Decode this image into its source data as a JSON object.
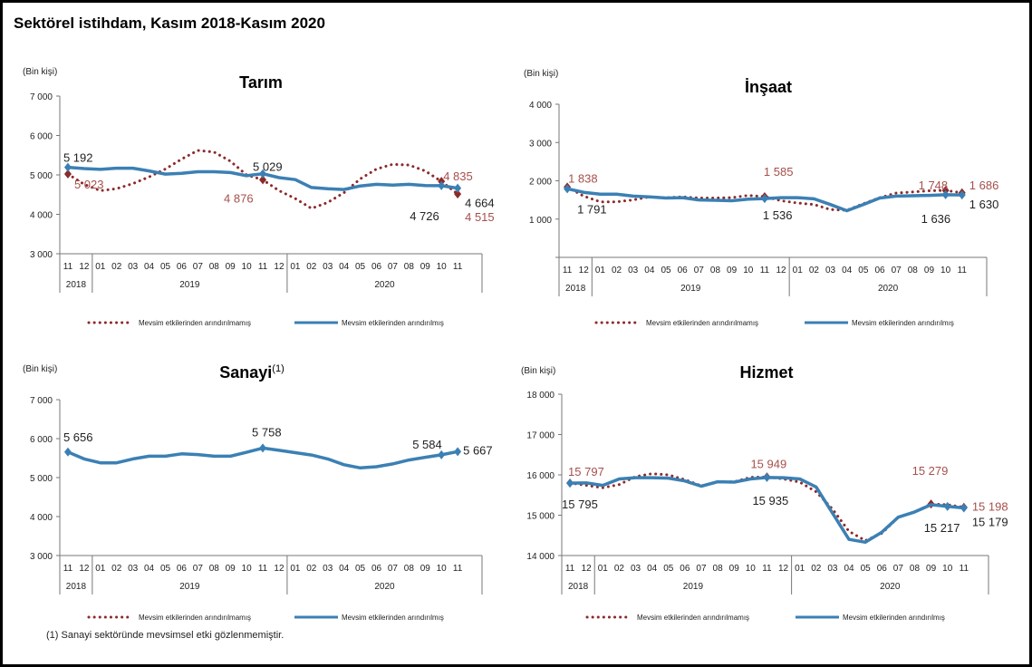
{
  "title": "Sektörel istihdam, Kasım 2018-Kasım 2020",
  "footnote": "(1) Sanayi sektöründe mevsimsel etki gözlenmemiştir.",
  "colors": {
    "adjusted": "#3b80b4",
    "unadjusted": "#8c2a2a",
    "unadjusted_label": "#a5504c"
  },
  "chart_data": [
    {
      "type": "line",
      "title": "Tarım",
      "title_sup": "",
      "ylabel": "(Bin kişi)",
      "ylim": [
        3000,
        7000
      ],
      "yticks": [
        "3 000",
        "4 000",
        "5 000",
        "6 000",
        "7 000"
      ],
      "ytick_values": [
        3000,
        4000,
        5000,
        6000,
        7000
      ],
      "months": [
        "11",
        "12",
        "01",
        "02",
        "03",
        "04",
        "05",
        "06",
        "07",
        "08",
        "09",
        "10",
        "11",
        "12",
        "01",
        "02",
        "03",
        "04",
        "05",
        "06",
        "07",
        "08",
        "09",
        "10",
        "11"
      ],
      "years": [
        "2018",
        "2019",
        "2020"
      ],
      "series": [
        {
          "name": "Mevsim etkilerinden arındırılmamış",
          "style": "dotted",
          "values": [
            5023,
            4760,
            4600,
            4650,
            4780,
            4950,
            5150,
            5400,
            5620,
            5580,
            5350,
            5000,
            4876,
            4600,
            4400,
            4150,
            4300,
            4550,
            4900,
            5150,
            5270,
            5250,
            5100,
            4835,
            4515
          ],
          "labels": [
            {
              "i": 0,
              "text": "5 023"
            },
            {
              "i": 12,
              "text": "4 876"
            },
            {
              "i": 23,
              "text": "4 835"
            },
            {
              "i": 24,
              "text": "4 515"
            }
          ]
        },
        {
          "name": "Mevsim etkilerinden arındırılmış",
          "style": "solid",
          "values": [
            5192,
            5160,
            5140,
            5170,
            5170,
            5100,
            5020,
            5040,
            5080,
            5080,
            5060,
            4980,
            5029,
            4930,
            4880,
            4680,
            4650,
            4630,
            4720,
            4760,
            4740,
            4760,
            4730,
            4726,
            4664
          ],
          "labels": [
            {
              "i": 0,
              "text": "5 192"
            },
            {
              "i": 12,
              "text": "5 029"
            },
            {
              "i": 23,
              "text": "4 726"
            },
            {
              "i": 24,
              "text": "4 664"
            }
          ]
        }
      ],
      "legend": "bottom"
    },
    {
      "type": "line",
      "title": "İnşaat",
      "title_sup": "",
      "ylabel": "(Bin kişi)",
      "ylim": [
        0,
        4000
      ],
      "yticks": [
        "",
        "1 000",
        "2 000",
        "3 000",
        "4 000"
      ],
      "ytick_values": [
        0,
        1000,
        2000,
        3000,
        4000
      ],
      "months": [
        "11",
        "12",
        "01",
        "02",
        "03",
        "04",
        "05",
        "06",
        "07",
        "08",
        "09",
        "10",
        "11",
        "12",
        "01",
        "02",
        "03",
        "04",
        "05",
        "06",
        "07",
        "08",
        "09",
        "10",
        "11"
      ],
      "years": [
        "2018",
        "2019",
        "2020"
      ],
      "series": [
        {
          "name": "Mevsim etkilerinden arındırılmamış",
          "style": "dotted",
          "values": [
            1838,
            1600,
            1450,
            1450,
            1500,
            1580,
            1560,
            1580,
            1550,
            1550,
            1560,
            1620,
            1585,
            1480,
            1420,
            1380,
            1250,
            1230,
            1400,
            1560,
            1680,
            1710,
            1740,
            1748,
            1686
          ],
          "labels": [
            {
              "i": 0,
              "text": "1 838"
            },
            {
              "i": 12,
              "text": "1 585"
            },
            {
              "i": 23,
              "text": "1 748"
            },
            {
              "i": 24,
              "text": "1 686"
            }
          ]
        },
        {
          "name": "Mevsim etkilerinden arındırılmış",
          "style": "solid",
          "values": [
            1791,
            1700,
            1650,
            1650,
            1600,
            1580,
            1550,
            1560,
            1500,
            1490,
            1480,
            1520,
            1536,
            1560,
            1560,
            1530,
            1380,
            1220,
            1380,
            1550,
            1600,
            1610,
            1620,
            1636,
            1630
          ],
          "labels": [
            {
              "i": 0,
              "text": "1 791"
            },
            {
              "i": 12,
              "text": "1 536"
            },
            {
              "i": 23,
              "text": "1 636"
            },
            {
              "i": 24,
              "text": "1 630"
            }
          ]
        }
      ],
      "legend": "bottom"
    },
    {
      "type": "line",
      "title": "Sanayi",
      "title_sup": "(1)",
      "ylabel": "(Bin kişi)",
      "ylim": [
        3000,
        7000
      ],
      "yticks": [
        "3 000",
        "4 000",
        "5 000",
        "6 000",
        "7 000"
      ],
      "ytick_values": [
        3000,
        4000,
        5000,
        6000,
        7000
      ],
      "months": [
        "11",
        "12",
        "01",
        "02",
        "03",
        "04",
        "05",
        "06",
        "07",
        "08",
        "09",
        "10",
        "11",
        "12",
        "01",
        "02",
        "03",
        "04",
        "05",
        "06",
        "07",
        "08",
        "09",
        "10",
        "11"
      ],
      "years": [
        "2018",
        "2019",
        "2020"
      ],
      "series": [
        {
          "name": "",
          "style": "solid",
          "values": [
            5656,
            5480,
            5380,
            5380,
            5480,
            5550,
            5550,
            5610,
            5590,
            5550,
            5550,
            5650,
            5758,
            5700,
            5640,
            5580,
            5480,
            5330,
            5250,
            5280,
            5350,
            5450,
            5520,
            5584,
            5667
          ],
          "labels": [
            {
              "i": 0,
              "text": "5 656"
            },
            {
              "i": 12,
              "text": "5 758"
            },
            {
              "i": 23,
              "text": "5 584"
            },
            {
              "i": 24,
              "text": "5 667"
            }
          ]
        }
      ],
      "legend_entries": [
        "Mevsim etkilerinden arındırılmamış",
        "Mevsim etkilerinden arındırılmış"
      ],
      "legend": "bottom"
    },
    {
      "type": "line",
      "title": "Hizmet",
      "title_sup": "",
      "ylabel": "(Bin kişi)",
      "ylim": [
        14000,
        18000
      ],
      "yticks": [
        "14 000",
        "15 000",
        "16 000",
        "17 000",
        "18 000"
      ],
      "ytick_values": [
        14000,
        15000,
        16000,
        17000,
        18000
      ],
      "months": [
        "11",
        "12",
        "01",
        "02",
        "03",
        "04",
        "05",
        "06",
        "07",
        "08",
        "09",
        "10",
        "11",
        "12",
        "01",
        "02",
        "03",
        "04",
        "05",
        "06",
        "07",
        "08",
        "09",
        "10",
        "11"
      ],
      "years": [
        "2018",
        "2019",
        "2020"
      ],
      "series": [
        {
          "name": "Mevsim etkilerinden arındırılmamış",
          "style": "dotted",
          "values": [
            15797,
            15740,
            15680,
            15760,
            15960,
            16030,
            16000,
            15880,
            15730,
            15820,
            15830,
            15940,
            15949,
            15900,
            15820,
            15580,
            15150,
            14600,
            14370,
            14550,
            14950,
            15080,
            15279,
            15260,
            15198
          ],
          "labels": [
            {
              "i": 0,
              "text": "15 797"
            },
            {
              "i": 12,
              "text": "15 949"
            },
            {
              "i": 22,
              "text": "15 279"
            },
            {
              "i": 24,
              "text": "15 198"
            }
          ]
        },
        {
          "name": "Mevsim etkilerinden arındırılmış",
          "style": "solid",
          "values": [
            15795,
            15800,
            15740,
            15900,
            15930,
            15930,
            15920,
            15850,
            15720,
            15830,
            15820,
            15900,
            15935,
            15930,
            15900,
            15700,
            15050,
            14400,
            14330,
            14580,
            14950,
            15080,
            15260,
            15217,
            15179
          ],
          "labels": [
            {
              "i": 0,
              "text": "15 795"
            },
            {
              "i": 12,
              "text": "15 935"
            },
            {
              "i": 23,
              "text": "15 217"
            },
            {
              "i": 24,
              "text": "15 179"
            }
          ]
        }
      ],
      "legend": "bottom"
    }
  ]
}
